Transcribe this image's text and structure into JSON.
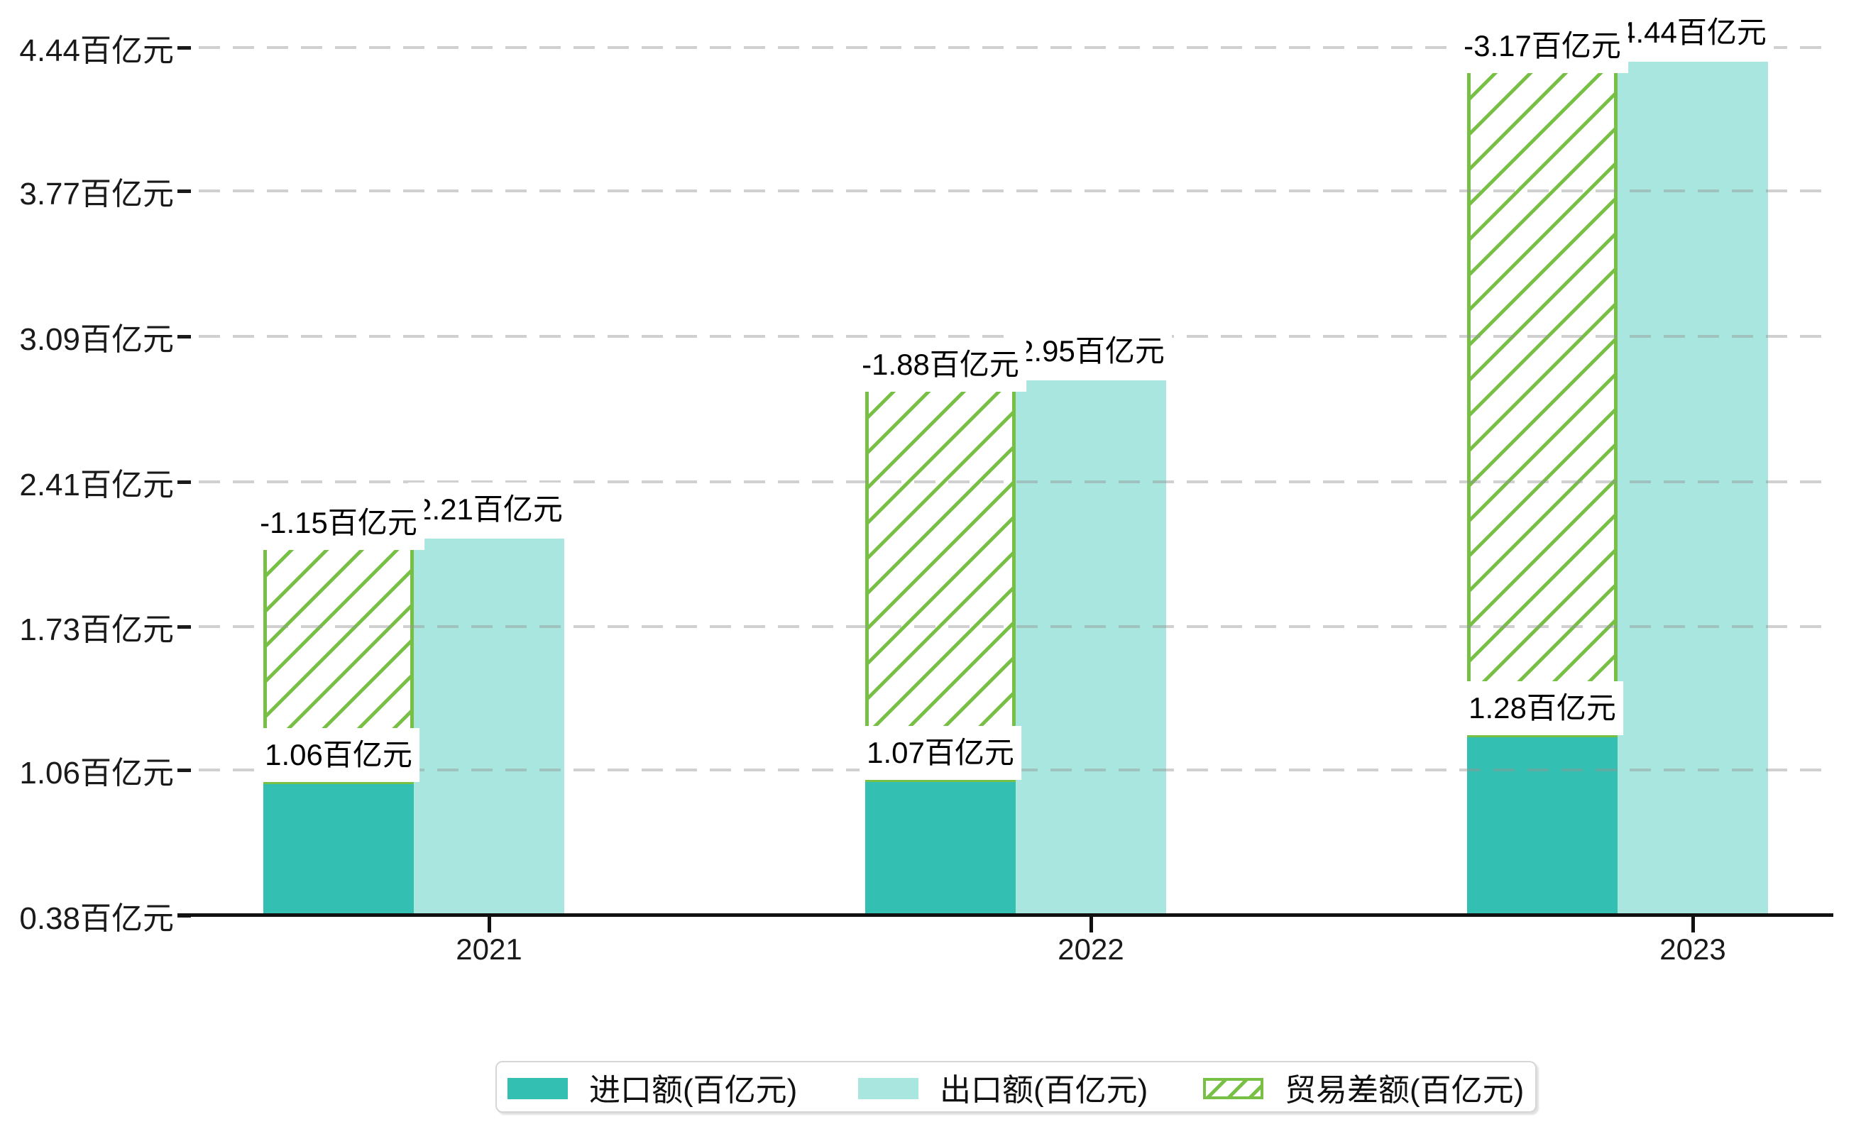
{
  "chart_data": {
    "type": "bar",
    "title": "",
    "xlabel": "",
    "ylabel": "",
    "unit": "百亿元",
    "categories": [
      "2021",
      "2022",
      "2023"
    ],
    "series": [
      {
        "name": "进口额(百亿元)",
        "role": "import",
        "values": [
          1.06,
          1.07,
          1.28
        ],
        "labels": [
          "1.06百亿元",
          "1.07百亿元",
          "1.28百亿元"
        ],
        "color": "#33bfb2",
        "style": "solid"
      },
      {
        "name": "出口额(百亿元)",
        "role": "export",
        "values": [
          2.21,
          2.95,
          4.44
        ],
        "labels": [
          "2.21百亿元",
          "2.95百亿元",
          "4.44百亿元"
        ],
        "color": "#a9e6df",
        "style": "solid"
      },
      {
        "name": "贸易差额(百亿元)",
        "role": "trade-balance",
        "values": [
          -1.15,
          -1.88,
          -3.17
        ],
        "labels": [
          "-1.15百亿元",
          "-1.88百亿元",
          "-3.17百亿元"
        ],
        "color": "#77c045",
        "style": "hatched",
        "note": "floating hatched bar spanning from import level up to export level"
      }
    ],
    "yticks": [
      {
        "value": 0.38,
        "label": "0.38百亿元"
      },
      {
        "value": 1.06,
        "label": "1.06百亿元"
      },
      {
        "value": 1.73,
        "label": "1.73百亿元"
      },
      {
        "value": 2.41,
        "label": "2.41百亿元"
      },
      {
        "value": 3.09,
        "label": "3.09百亿元"
      },
      {
        "value": 3.77,
        "label": "3.77百亿元"
      },
      {
        "value": 4.44,
        "label": "4.44百亿元"
      }
    ],
    "ylim": [
      0.38,
      4.44
    ],
    "grid": true,
    "grid_style": "dashed",
    "legend_position": "bottom"
  },
  "colors": {
    "import_bar": "#33bfb2",
    "export_bar": "#a9e6df",
    "balance_hatch": "#77c045",
    "axis": "#111111",
    "gridline": "#d9d9d9",
    "background": "#ffffff",
    "label_text": "#000000",
    "legend_border": "#d6d6d6"
  },
  "legend": {
    "items": [
      {
        "label": "进口额(百亿元)",
        "swatch": "solid-teal"
      },
      {
        "label": "出口额(百亿元)",
        "swatch": "solid-light-teal"
      },
      {
        "label": "贸易差额(百亿元)",
        "swatch": "green-hatched"
      }
    ]
  }
}
